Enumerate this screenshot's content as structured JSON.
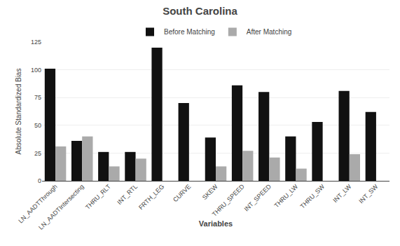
{
  "chart_data": {
    "type": "bar",
    "title": "South Carolina",
    "xlabel": "Variables",
    "ylabel": "Absolute Standardized Bias",
    "categories": [
      "LN_AADTThrough",
      "LN_AADTIntersecting",
      "THRU_RLT",
      "INT_RTL",
      "FRTH_LEG",
      "CURVE",
      "SKEW",
      "THRU_SPEED",
      "INT_SPEED",
      "THRU_LW",
      "THRU_SW",
      "INT_LW",
      "INT_SW"
    ],
    "series": [
      {
        "name": "Before Matching",
        "color": "#111111",
        "values": [
          101,
          36,
          26,
          26,
          120,
          70,
          39,
          86,
          80,
          40,
          53,
          81,
          62
        ]
      },
      {
        "name": "After Matching",
        "color": "#aaaaaa",
        "values": [
          31,
          40,
          13,
          20,
          null,
          null,
          13,
          27,
          21,
          11,
          null,
          24,
          null
        ]
      }
    ],
    "ylim": [
      0,
      125
    ],
    "yticks": [
      0,
      25,
      50,
      75,
      100,
      125
    ],
    "grid": true,
    "legend": "top"
  }
}
